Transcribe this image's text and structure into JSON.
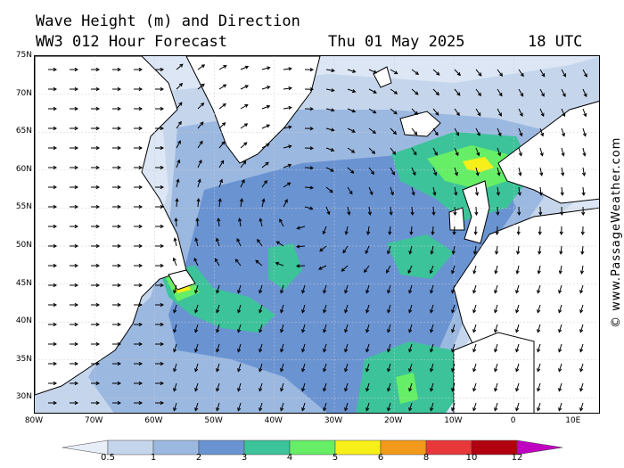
{
  "header": {
    "line1": "Wave Height (m) and Direction",
    "line2": "WW3 012 Hour Forecast",
    "date": "Thu 01 May 2025",
    "time": "18 UTC"
  },
  "watermark": "© www.PassageWeather.com",
  "lat_labels": [
    "75N",
    "70N",
    "65N",
    "60N",
    "55N",
    "50N",
    "45N",
    "40N",
    "35N",
    "30N"
  ],
  "lon_labels": [
    "80W",
    "70W",
    "60W",
    "50W",
    "40W",
    "30W",
    "20W",
    "10W",
    "0",
    "10E"
  ],
  "legend": {
    "labels": [
      "0.5",
      "1",
      "2",
      "3",
      "4",
      "5",
      "6",
      "8",
      "10",
      "12"
    ],
    "colors": [
      "#e8eef8",
      "#c5d6ec",
      "#9bb8e0",
      "#6a93d2",
      "#3cc39a",
      "#66ee66",
      "#f7ef1a",
      "#f29a1b",
      "#e8383a",
      "#b10010",
      "#c000c0"
    ]
  },
  "map_colors": {
    "land": "#ffffff",
    "coast": "#000000",
    "border": "#888888",
    "arrow": "#000000"
  },
  "icons": {
    "arrow": "direction-arrow-icon"
  }
}
